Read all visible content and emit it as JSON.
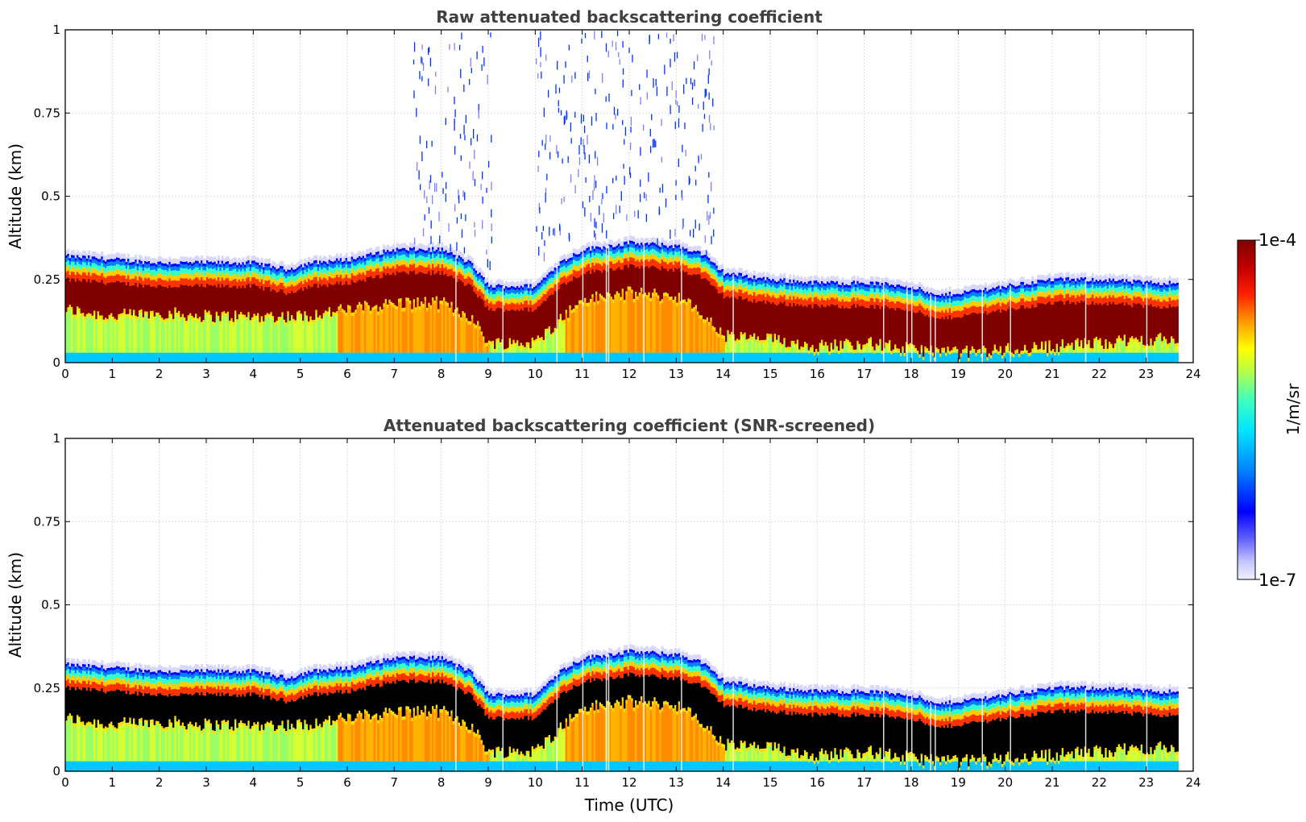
{
  "chart_data": [
    {
      "type": "heatmap",
      "title": "Raw attenuated backscattering coefficient",
      "xlabel": "",
      "ylabel": "Altitude (km)",
      "xlim": [
        0,
        24
      ],
      "ylim": [
        0,
        1
      ],
      "xticks": [
        "0",
        "1",
        "2",
        "3",
        "4",
        "5",
        "6",
        "7",
        "8",
        "9",
        "10",
        "11",
        "12",
        "13",
        "14",
        "15",
        "16",
        "17",
        "18",
        "19",
        "20",
        "21",
        "22",
        "23",
        "24"
      ],
      "yticks": [
        "0",
        "0.25",
        "0.5",
        "0.75",
        "1"
      ],
      "grid": true,
      "screened": false,
      "data_end_hour": 23.65,
      "layer_top_km": [
        [
          0,
          0.32
        ],
        [
          1,
          0.31
        ],
        [
          2,
          0.3
        ],
        [
          3,
          0.3
        ],
        [
          4,
          0.3
        ],
        [
          4.7,
          0.28
        ],
        [
          5.2,
          0.3
        ],
        [
          6,
          0.31
        ],
        [
          7,
          0.34
        ],
        [
          8,
          0.34
        ],
        [
          8.6,
          0.3
        ],
        [
          9,
          0.23
        ],
        [
          10,
          0.23
        ],
        [
          10.5,
          0.3
        ],
        [
          11,
          0.34
        ],
        [
          12,
          0.36
        ],
        [
          13,
          0.35
        ],
        [
          13.5,
          0.33
        ],
        [
          14,
          0.27
        ],
        [
          15,
          0.25
        ],
        [
          16,
          0.24
        ],
        [
          17,
          0.24
        ],
        [
          18,
          0.23
        ],
        [
          18.5,
          0.2
        ],
        [
          19,
          0.21
        ],
        [
          20,
          0.23
        ],
        [
          21,
          0.25
        ],
        [
          22,
          0.25
        ],
        [
          23,
          0.24
        ],
        [
          23.65,
          0.24
        ]
      ],
      "saturated_base_km": [
        [
          0,
          0.15
        ],
        [
          1,
          0.13
        ],
        [
          2,
          0.14
        ],
        [
          3,
          0.13
        ],
        [
          4,
          0.13
        ],
        [
          5,
          0.13
        ],
        [
          6,
          0.15
        ],
        [
          7,
          0.17
        ],
        [
          8,
          0.17
        ],
        [
          8.6,
          0.13
        ],
        [
          9,
          0.05
        ],
        [
          10,
          0.05
        ],
        [
          10.5,
          0.12
        ],
        [
          11,
          0.18
        ],
        [
          12,
          0.2
        ],
        [
          13,
          0.19
        ],
        [
          13.5,
          0.14
        ],
        [
          14,
          0.07
        ],
        [
          15,
          0.06
        ],
        [
          16,
          0.04
        ],
        [
          17,
          0.05
        ],
        [
          18,
          0.03
        ],
        [
          19,
          0.02
        ],
        [
          20,
          0.03
        ],
        [
          21,
          0.04
        ],
        [
          22,
          0.05
        ],
        [
          23,
          0.06
        ],
        [
          23.65,
          0.06
        ]
      ],
      "high_core_segments": [
        [
          5.8,
          9.0
        ],
        [
          10.6,
          14.0
        ]
      ],
      "data_gaps_hours": [
        8.3,
        9.3,
        10.45,
        11.0,
        11.5,
        11.55,
        12.3,
        13.1,
        14.2,
        17.4,
        17.9,
        18.0,
        18.4,
        18.5,
        19.5,
        20.1,
        21.7,
        23.0
      ]
    },
    {
      "type": "heatmap",
      "title": "Attenuated backscattering coefficient (SNR-screened)",
      "xlabel": "Time (UTC)",
      "ylabel": "Altitude (km)",
      "xlim": [
        0,
        24
      ],
      "ylim": [
        0,
        1
      ],
      "xticks": [
        "0",
        "1",
        "2",
        "3",
        "4",
        "5",
        "6",
        "7",
        "8",
        "9",
        "10",
        "11",
        "12",
        "13",
        "14",
        "15",
        "16",
        "17",
        "18",
        "19",
        "20",
        "21",
        "22",
        "23",
        "24"
      ],
      "yticks": [
        "0",
        "0.25",
        "0.5",
        "0.75",
        "1"
      ],
      "grid": true,
      "screened": true,
      "data_end_hour": 23.65
    }
  ],
  "colorbar": {
    "label": "1/m/sr",
    "max_label": "1e-4",
    "min_label": "1e-7",
    "scale": "log",
    "colormap": [
      "#eeeeff",
      "#c8c8ff",
      "#8080ff",
      "#0000ff",
      "#0080ff",
      "#00e5ff",
      "#40ffbf",
      "#bfff40",
      "#ffff00",
      "#ff9900",
      "#ff2000",
      "#c00000",
      "#800000"
    ]
  }
}
